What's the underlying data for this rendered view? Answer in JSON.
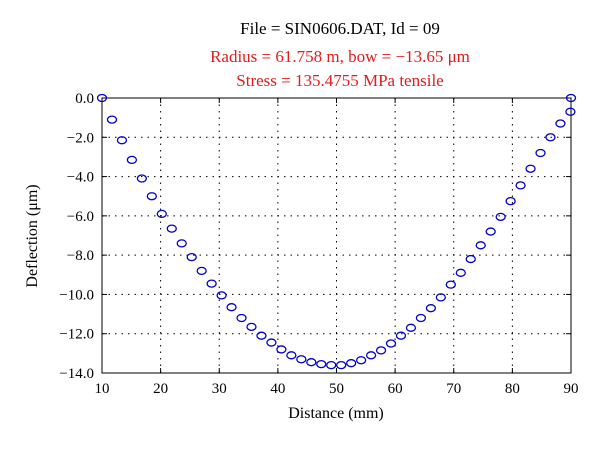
{
  "chart_data": {
    "type": "scatter",
    "title": "File = SIN0606.DAT, Id = 09",
    "subtitle_lines": [
      "Radius = 61.758 m, bow = −13.65 μm",
      "Stress = 135.4755 MPa tensile"
    ],
    "xlabel": "Distance (mm)",
    "ylabel": "Deflection (μm)",
    "xlim": [
      10,
      90
    ],
    "ylim": [
      -14.0,
      0.0
    ],
    "xticks": [
      10,
      20,
      30,
      40,
      50,
      60,
      70,
      80,
      90
    ],
    "yticks": [
      0.0,
      -2.0,
      -4.0,
      -6.0,
      -8.0,
      -10.0,
      -12.0,
      -14.0
    ],
    "xtick_labels": [
      "10",
      "20",
      "30",
      "40",
      "50",
      "60",
      "70",
      "80",
      "90"
    ],
    "ytick_labels": [
      "0.0",
      "−2.0",
      "−4.0",
      "−6.0",
      "−8.0",
      "−10.0",
      "−12.0",
      "−14.0"
    ],
    "grid": "dotted",
    "marker": "open-circle",
    "marker_color": "#0000cc",
    "title_color": "#000000",
    "subtitle_color": "#e41a1c",
    "points": [
      [
        10.0,
        0.0
      ],
      [
        11.7,
        -1.1
      ],
      [
        13.4,
        -2.15
      ],
      [
        15.1,
        -3.15
      ],
      [
        16.8,
        -4.1
      ],
      [
        18.5,
        -5.0
      ],
      [
        20.2,
        -5.9
      ],
      [
        21.9,
        -6.65
      ],
      [
        23.6,
        -7.4
      ],
      [
        25.3,
        -8.1
      ],
      [
        27.0,
        -8.8
      ],
      [
        28.7,
        -9.45
      ],
      [
        30.4,
        -10.05
      ],
      [
        32.1,
        -10.65
      ],
      [
        33.8,
        -11.2
      ],
      [
        35.5,
        -11.65
      ],
      [
        37.2,
        -12.1
      ],
      [
        38.9,
        -12.45
      ],
      [
        40.6,
        -12.8
      ],
      [
        42.3,
        -13.1
      ],
      [
        44.0,
        -13.3
      ],
      [
        45.7,
        -13.45
      ],
      [
        47.4,
        -13.55
      ],
      [
        49.1,
        -13.6
      ],
      [
        50.8,
        -13.6
      ],
      [
        52.5,
        -13.5
      ],
      [
        54.2,
        -13.35
      ],
      [
        55.9,
        -13.1
      ],
      [
        57.6,
        -12.85
      ],
      [
        59.3,
        -12.5
      ],
      [
        61.0,
        -12.1
      ],
      [
        62.7,
        -11.7
      ],
      [
        64.4,
        -11.2
      ],
      [
        66.1,
        -10.7
      ],
      [
        67.8,
        -10.15
      ],
      [
        69.5,
        -9.5
      ],
      [
        71.2,
        -8.9
      ],
      [
        72.9,
        -8.2
      ],
      [
        74.6,
        -7.5
      ],
      [
        76.3,
        -6.8
      ],
      [
        78.0,
        -6.05
      ],
      [
        79.7,
        -5.25
      ],
      [
        81.4,
        -4.45
      ],
      [
        83.1,
        -3.6
      ],
      [
        84.8,
        -2.8
      ],
      [
        86.5,
        -2.0
      ],
      [
        88.2,
        -1.3
      ],
      [
        89.9,
        -0.7
      ],
      [
        90.0,
        0.0
      ]
    ]
  }
}
